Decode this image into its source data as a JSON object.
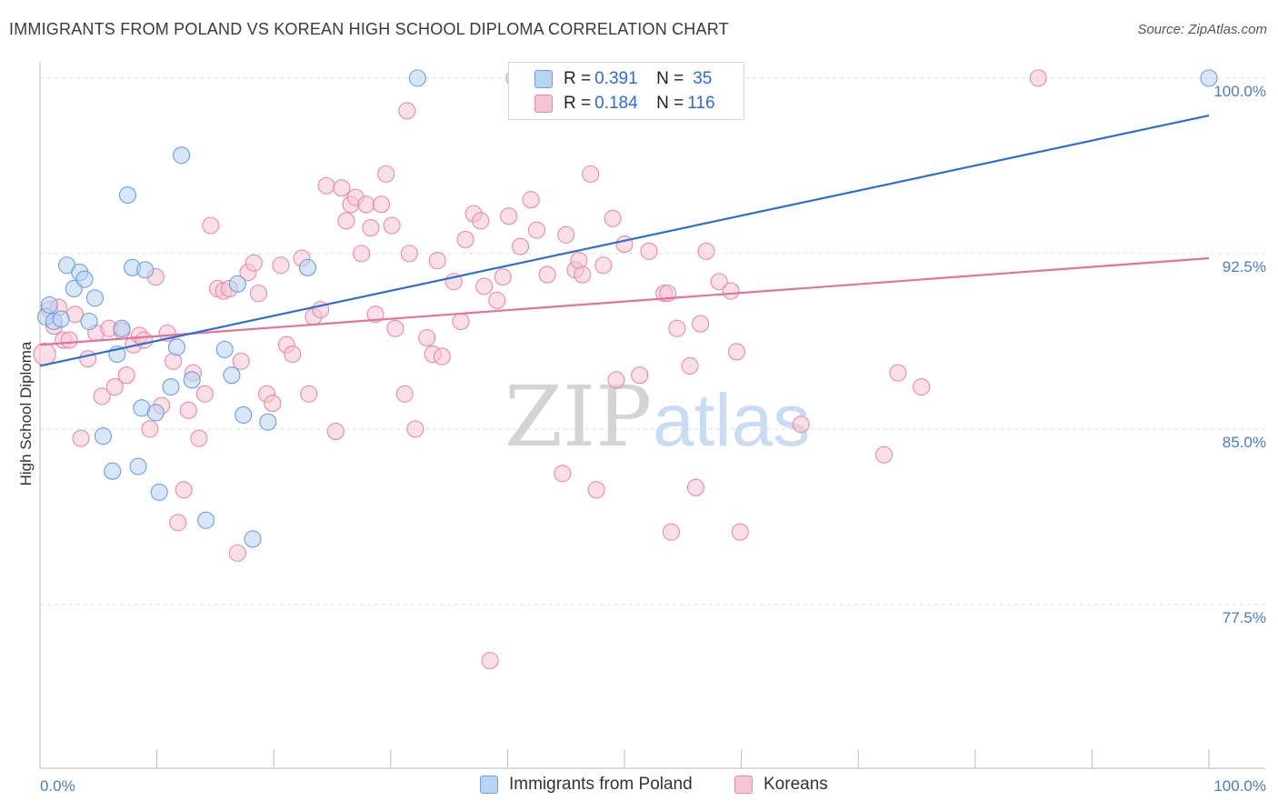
{
  "header": {
    "title": "IMMIGRANTS FROM POLAND VS KOREAN HIGH SCHOOL DIPLOMA CORRELATION CHART",
    "source": "Source: ZipAtlas.com"
  },
  "watermark": {
    "zip": "ZIP",
    "atlas": "atlas"
  },
  "legend": {
    "rows": [
      {
        "r_label": "R = ",
        "r_value": "0.391",
        "n_label": "N = ",
        "n_value": "35"
      },
      {
        "r_label": "R = ",
        "r_value": "0.184",
        "n_label": "N = ",
        "n_value": "116"
      }
    ]
  },
  "colors": {
    "poland_fill": "#b8d3f3",
    "poland_stroke": "#6f9ee0",
    "poland_line": "#2e6fd0",
    "korean_fill": "#f7c4d4",
    "korean_stroke": "#e88aa8",
    "korean_line": "#e2739a",
    "grid": "#dddddd",
    "tick_label": "#4a7cc4"
  },
  "chart_data": {
    "type": "scatter",
    "title": "IMMIGRANTS FROM POLAND VS KOREAN HIGH SCHOOL DIPLOMA CORRELATION CHART",
    "xlabel": "",
    "ylabel": "High School Diploma",
    "xlim": [
      0,
      100
    ],
    "ylim": [
      70.5,
      101.2
    ],
    "x_tick_labels": [
      "0.0%",
      "100.0%"
    ],
    "y_ticks": [
      77.5,
      85.0,
      92.5,
      100.0
    ],
    "y_tick_labels": [
      "77.5%",
      "85.0%",
      "92.5%",
      "100.0%"
    ],
    "grid": "horizontal dashed",
    "legend_position": "top-center",
    "series": [
      {
        "name": "Immigrants from Poland",
        "r": 0.391,
        "n": 35,
        "trend": [
          [
            0,
            87.7
          ],
          [
            100,
            98.4
          ]
        ],
        "points": [
          [
            0.5,
            89.8
          ],
          [
            0.8,
            90.3
          ],
          [
            1.2,
            89.6
          ],
          [
            1.8,
            89.7
          ],
          [
            2.3,
            92.0
          ],
          [
            2.9,
            91.0
          ],
          [
            3.4,
            91.7
          ],
          [
            3.8,
            91.4
          ],
          [
            4.2,
            89.6
          ],
          [
            4.7,
            90.6
          ],
          [
            5.4,
            84.7
          ],
          [
            6.2,
            83.2
          ],
          [
            6.6,
            88.2
          ],
          [
            7.5,
            95.0
          ],
          [
            7.9,
            91.9
          ],
          [
            8.4,
            83.4
          ],
          [
            8.7,
            85.9
          ],
          [
            9.0,
            91.8
          ],
          [
            9.9,
            85.7
          ],
          [
            10.2,
            82.3
          ],
          [
            11.2,
            86.8
          ],
          [
            11.7,
            88.5
          ],
          [
            12.1,
            96.7
          ],
          [
            13.0,
            87.1
          ],
          [
            14.2,
            81.1
          ],
          [
            15.8,
            88.4
          ],
          [
            16.4,
            87.3
          ],
          [
            16.9,
            91.2
          ],
          [
            17.4,
            85.6
          ],
          [
            18.2,
            80.3
          ],
          [
            19.5,
            85.3
          ],
          [
            22.9,
            91.9
          ],
          [
            32.3,
            100.0
          ],
          [
            100.0,
            100.0
          ],
          [
            7.0,
            89.3
          ]
        ]
      },
      {
        "name": "Koreans",
        "r": 0.184,
        "n": 116,
        "trend": [
          [
            0,
            88.6
          ],
          [
            100,
            92.3
          ]
        ],
        "points": [
          [
            0.4,
            88.2
          ],
          [
            0.8,
            90.1
          ],
          [
            1.2,
            89.4
          ],
          [
            1.6,
            90.2
          ],
          [
            2.0,
            88.8
          ],
          [
            2.5,
            88.8
          ],
          [
            3.0,
            89.9
          ],
          [
            3.5,
            84.6
          ],
          [
            4.1,
            88.0
          ],
          [
            4.8,
            89.1
          ],
          [
            5.3,
            86.4
          ],
          [
            5.9,
            89.3
          ],
          [
            6.4,
            86.8
          ],
          [
            7.0,
            89.2
          ],
          [
            7.4,
            87.3
          ],
          [
            8.0,
            88.6
          ],
          [
            8.5,
            89.0
          ],
          [
            8.9,
            88.8
          ],
          [
            9.4,
            85.0
          ],
          [
            9.9,
            91.5
          ],
          [
            10.4,
            86.0
          ],
          [
            10.9,
            89.1
          ],
          [
            11.4,
            87.9
          ],
          [
            11.8,
            81.0
          ],
          [
            12.3,
            82.4
          ],
          [
            12.7,
            85.8
          ],
          [
            13.1,
            87.4
          ],
          [
            13.6,
            84.6
          ],
          [
            14.1,
            86.5
          ],
          [
            14.6,
            93.7
          ],
          [
            15.2,
            91.0
          ],
          [
            15.7,
            90.9
          ],
          [
            16.2,
            91.0
          ],
          [
            16.9,
            79.7
          ],
          [
            17.2,
            87.9
          ],
          [
            17.8,
            91.7
          ],
          [
            18.3,
            92.1
          ],
          [
            18.7,
            90.8
          ],
          [
            19.4,
            86.5
          ],
          [
            19.9,
            86.1
          ],
          [
            20.6,
            92.0
          ],
          [
            21.1,
            88.6
          ],
          [
            21.6,
            88.2
          ],
          [
            22.4,
            92.3
          ],
          [
            23.0,
            86.5
          ],
          [
            23.4,
            89.8
          ],
          [
            24.0,
            90.1
          ],
          [
            24.5,
            95.4
          ],
          [
            25.3,
            84.9
          ],
          [
            25.8,
            95.3
          ],
          [
            26.2,
            93.9
          ],
          [
            26.6,
            94.6
          ],
          [
            27.0,
            94.9
          ],
          [
            27.5,
            92.5
          ],
          [
            27.9,
            94.6
          ],
          [
            28.3,
            93.6
          ],
          [
            28.7,
            89.9
          ],
          [
            29.2,
            94.6
          ],
          [
            29.6,
            95.9
          ],
          [
            30.1,
            93.7
          ],
          [
            30.4,
            89.3
          ],
          [
            31.2,
            86.5
          ],
          [
            31.6,
            92.5
          ],
          [
            32.1,
            85.0
          ],
          [
            31.4,
            98.6
          ],
          [
            33.1,
            88.9
          ],
          [
            33.6,
            88.2
          ],
          [
            34.0,
            92.2
          ],
          [
            34.4,
            88.1
          ],
          [
            35.4,
            91.3
          ],
          [
            36.0,
            89.6
          ],
          [
            36.4,
            93.1
          ],
          [
            37.1,
            94.2
          ],
          [
            37.7,
            93.9
          ],
          [
            38.0,
            91.1
          ],
          [
            39.1,
            90.5
          ],
          [
            39.6,
            91.5
          ],
          [
            40.1,
            94.1
          ],
          [
            40.6,
            100.0
          ],
          [
            41.1,
            92.8
          ],
          [
            42.0,
            94.8
          ],
          [
            42.5,
            93.5
          ],
          [
            43.4,
            91.6
          ],
          [
            44.7,
            83.1
          ],
          [
            45.0,
            93.3
          ],
          [
            45.8,
            91.8
          ],
          [
            46.1,
            92.2
          ],
          [
            46.4,
            91.6
          ],
          [
            47.1,
            95.9
          ],
          [
            47.6,
            82.4
          ],
          [
            48.2,
            92.0
          ],
          [
            49.0,
            94.0
          ],
          [
            49.3,
            87.1
          ],
          [
            50.0,
            92.9
          ],
          [
            51.3,
            87.3
          ],
          [
            52.1,
            92.6
          ],
          [
            53.4,
            90.8
          ],
          [
            53.7,
            90.8
          ],
          [
            54.0,
            80.6
          ],
          [
            54.5,
            89.3
          ],
          [
            55.6,
            87.7
          ],
          [
            56.1,
            82.5
          ],
          [
            56.5,
            89.5
          ],
          [
            57.0,
            92.6
          ],
          [
            58.1,
            91.3
          ],
          [
            59.1,
            90.9
          ],
          [
            59.6,
            88.3
          ],
          [
            59.9,
            80.6
          ],
          [
            65.1,
            85.2
          ],
          [
            72.2,
            83.9
          ],
          [
            73.4,
            87.4
          ],
          [
            75.4,
            86.8
          ],
          [
            85.4,
            100.0
          ],
          [
            38.5,
            75.1
          ]
        ]
      }
    ]
  },
  "bottom_legend": {
    "items": [
      {
        "label": "Immigrants from Poland"
      },
      {
        "label": "Koreans"
      }
    ]
  }
}
